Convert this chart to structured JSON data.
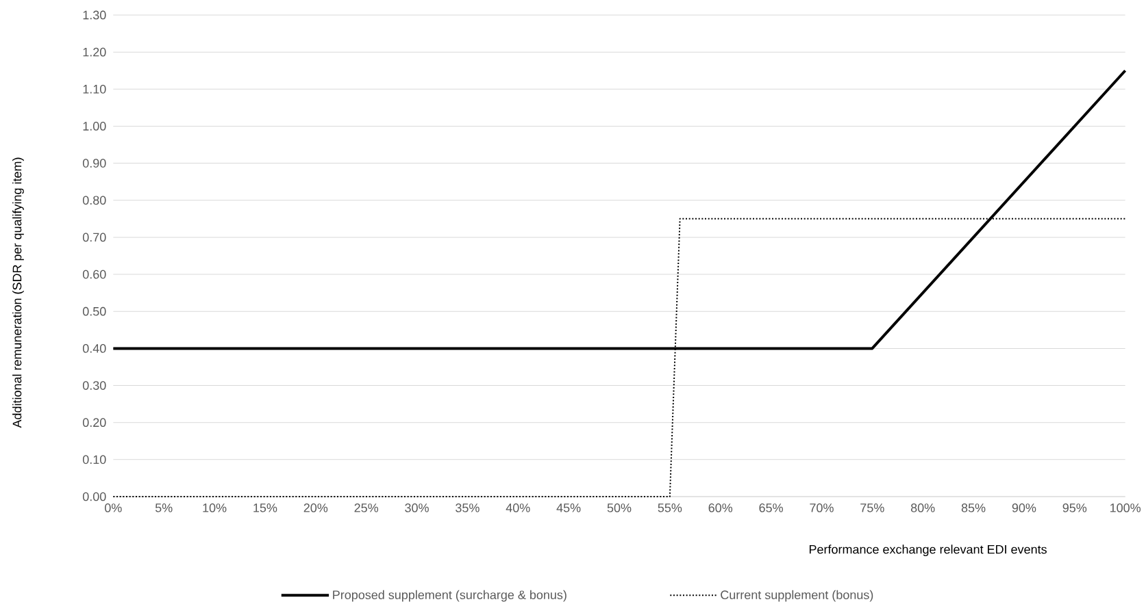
{
  "chart_data": {
    "type": "line",
    "xlabel": "Performance exchange relevant EDI events",
    "ylabel": "Additional remuneration (SDR per qualifying item)",
    "xlim": [
      0,
      100
    ],
    "xticks": [
      {
        "value": 0,
        "label": "0%"
      },
      {
        "value": 5,
        "label": "5%"
      },
      {
        "value": 10,
        "label": "10%"
      },
      {
        "value": 15,
        "label": "15%"
      },
      {
        "value": 20,
        "label": "20%"
      },
      {
        "value": 25,
        "label": "25%"
      },
      {
        "value": 30,
        "label": "30%"
      },
      {
        "value": 35,
        "label": "35%"
      },
      {
        "value": 40,
        "label": "40%"
      },
      {
        "value": 45,
        "label": "45%"
      },
      {
        "value": 50,
        "label": "50%"
      },
      {
        "value": 55,
        "label": "55%"
      },
      {
        "value": 60,
        "label": "60%"
      },
      {
        "value": 65,
        "label": "65%"
      },
      {
        "value": 70,
        "label": "70%"
      },
      {
        "value": 75,
        "label": "75%"
      },
      {
        "value": 80,
        "label": "80%"
      },
      {
        "value": 85,
        "label": "85%"
      },
      {
        "value": 90,
        "label": "90%"
      },
      {
        "value": 95,
        "label": "95%"
      },
      {
        "value": 100,
        "label": "100%"
      }
    ],
    "ylim": [
      0,
      1.3
    ],
    "yticks": [
      {
        "value": 0,
        "label": "0.00"
      },
      {
        "value": 0.1,
        "label": "0.10"
      },
      {
        "value": 0.2,
        "label": "0.20"
      },
      {
        "value": 0.3,
        "label": "0.30"
      },
      {
        "value": 0.4,
        "label": "0.40"
      },
      {
        "value": 0.5,
        "label": "0.50"
      },
      {
        "value": 0.6,
        "label": "0.60"
      },
      {
        "value": 0.7,
        "label": "0.70"
      },
      {
        "value": 0.8,
        "label": "0.80"
      },
      {
        "value": 0.9,
        "label": "0.90"
      },
      {
        "value": 1.0,
        "label": "1.00"
      },
      {
        "value": 1.1,
        "label": "1.10"
      },
      {
        "value": 1.2,
        "label": "1.20"
      },
      {
        "value": 1.3,
        "label": "1.30"
      }
    ],
    "grid": "y",
    "legend": "bottom",
    "series": [
      {
        "name": "Proposed supplement (surcharge & bonus)",
        "color": "#000000",
        "line_style": "solid",
        "x": [
          0,
          75,
          100
        ],
        "values": [
          0.4,
          0.4,
          1.15
        ]
      },
      {
        "name": "Current supplement (bonus)",
        "color": "#000000",
        "line_style": "dotted",
        "x": [
          0,
          55,
          56,
          100
        ],
        "values": [
          0,
          0,
          0.75,
          0.75
        ]
      }
    ]
  }
}
